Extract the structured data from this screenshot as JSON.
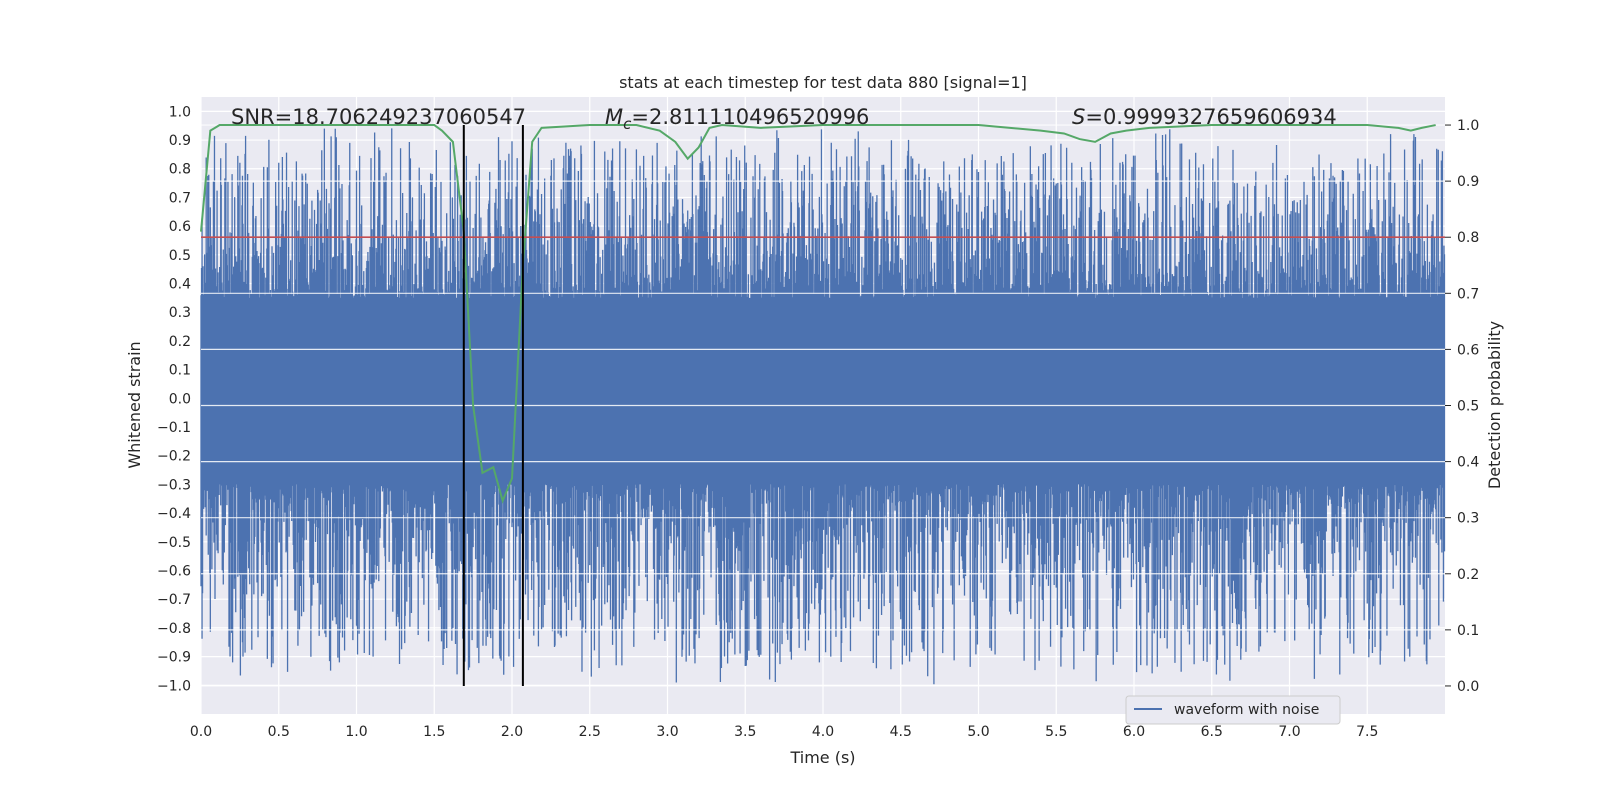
{
  "chart_data": {
    "type": "line",
    "title": "stats at each timestep for test data 880 [signal=1]",
    "xlabel": "Time (s)",
    "ylabel": "Whitened strain",
    "y2label": "Detection probability",
    "xlim": [
      0.0,
      8.0
    ],
    "ylim": [
      -1.1,
      1.05
    ],
    "y2lim": [
      -0.05,
      1.05
    ],
    "xticks": [
      "0.0",
      "0.5",
      "1.0",
      "1.5",
      "2.0",
      "2.5",
      "3.0",
      "3.5",
      "4.0",
      "4.5",
      "5.0",
      "5.5",
      "6.0",
      "6.5",
      "7.0",
      "7.5"
    ],
    "yticks": [
      "1.0",
      "0.9",
      "0.8",
      "0.7",
      "0.6",
      "0.5",
      "0.4",
      "0.3",
      "0.2",
      "0.1",
      "0.0",
      "−0.1",
      "−0.2",
      "−0.3",
      "−0.4",
      "−0.5",
      "−0.6",
      "−0.7",
      "−0.8",
      "−0.9",
      "−1.0"
    ],
    "y2ticks": [
      "1.0",
      "0.9",
      "0.8",
      "0.7",
      "0.6",
      "0.5",
      "0.4",
      "0.3",
      "0.2",
      "0.1",
      "0.0"
    ],
    "grid": true,
    "legend_position": "lower-right",
    "annotations": {
      "snr": "SNR=18.706249237060547",
      "mc_symbol": "M",
      "mc_subscript": "c",
      "mc_value": "=2.811110496520996",
      "s_symbol": "S",
      "s_value": "=0.9999327659606934"
    },
    "threshold": {
      "y2": 0.8,
      "color": "#c44e52"
    },
    "vlines": [
      1.69,
      2.07
    ],
    "series": [
      {
        "name": "waveform with noise",
        "color": "#4c72b0",
        "kind": "noise-band",
        "core_band": [
          -0.3,
          0.35
        ],
        "peak_top": 0.94,
        "peak_bottom": -1.0
      },
      {
        "color": "#55a868",
        "axis": "y2",
        "x": [
          0.0,
          0.06,
          0.12,
          0.5,
          1.0,
          1.5,
          1.55,
          1.62,
          1.69,
          1.75,
          1.81,
          1.88,
          1.94,
          2.0,
          2.07,
          2.13,
          2.19,
          2.5,
          2.8,
          2.95,
          3.05,
          3.13,
          3.2,
          3.27,
          3.35,
          3.6,
          4.0,
          4.5,
          5.0,
          5.4,
          5.55,
          5.65,
          5.75,
          5.85,
          5.95,
          6.1,
          6.5,
          7.0,
          7.5,
          7.7,
          7.78,
          7.85,
          7.94
        ],
        "y": [
          0.81,
          0.99,
          1.0,
          1.0,
          1.0,
          1.0,
          0.99,
          0.97,
          0.81,
          0.5,
          0.38,
          0.39,
          0.33,
          0.37,
          0.75,
          0.97,
          0.995,
          1.0,
          1.0,
          0.99,
          0.97,
          0.94,
          0.96,
          0.995,
          1.0,
          0.995,
          1.0,
          1.0,
          1.0,
          0.99,
          0.985,
          0.975,
          0.97,
          0.985,
          0.99,
          0.995,
          1.0,
          1.0,
          1.0,
          0.995,
          0.99,
          0.995,
          1.0
        ]
      }
    ]
  }
}
